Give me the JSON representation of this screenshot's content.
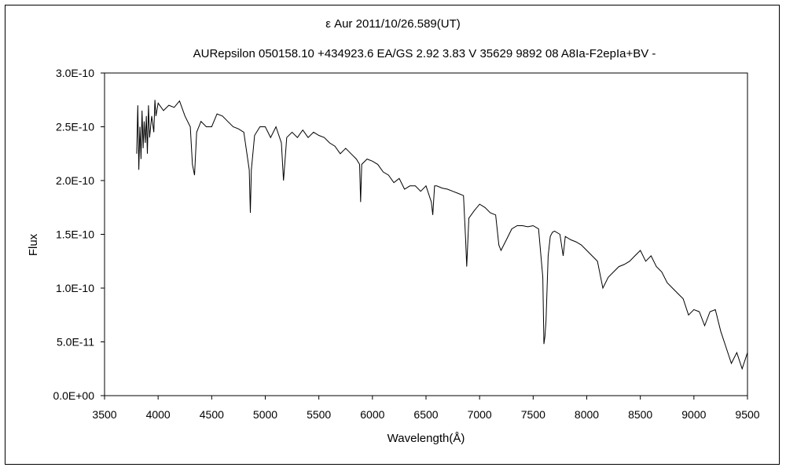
{
  "chart_data": {
    "type": "line",
    "title": "ε  Aur    2011/10/26.589(UT)",
    "subtitle": "AURepsilon 050158.10 +434923.6 EA/GS 2.92 3.83 V 35629 9892 08 A8Ia-F2epIa+BV -",
    "xlabel": "Wavelength(Å)",
    "ylabel": "Flux",
    "xlim": [
      3500,
      9500
    ],
    "ylim": [
      0,
      3e-10
    ],
    "x_ticks": [
      3500,
      4000,
      4500,
      5000,
      5500,
      6000,
      6500,
      7000,
      7500,
      8000,
      8500,
      9000,
      9500
    ],
    "x_tick_labels": [
      "3500",
      "4000",
      "4500",
      "5000",
      "5500",
      "6000",
      "6500",
      "7000",
      "7500",
      "8000",
      "8500",
      "9000",
      "9500"
    ],
    "y_ticks": [
      0,
      5e-11,
      1e-10,
      1.5e-10,
      2e-10,
      2.5e-10,
      3e-10
    ],
    "y_tick_labels": [
      "0.0E+00",
      "5.0E-11",
      "1.0E-10",
      "1.5E-10",
      "2.0E-10",
      "2.5E-10",
      "3.0E-10"
    ],
    "grid": false,
    "series": [
      {
        "x": [
          3800,
          3810,
          3820,
          3830,
          3840,
          3850,
          3860,
          3870,
          3880,
          3890,
          3900,
          3910,
          3920,
          3940,
          3960,
          3970,
          3980,
          4000,
          4050,
          4100,
          4150,
          4200,
          4250,
          4300,
          4320,
          4340,
          4360,
          4400,
          4450,
          4500,
          4550,
          4600,
          4650,
          4700,
          4750,
          4800,
          4850,
          4861,
          4870,
          4900,
          4950,
          5000,
          5050,
          5100,
          5150,
          5170,
          5200,
          5250,
          5300,
          5350,
          5400,
          5450,
          5500,
          5550,
          5600,
          5650,
          5700,
          5750,
          5800,
          5850,
          5880,
          5890,
          5900,
          5950,
          6000,
          6050,
          6100,
          6150,
          6200,
          6250,
          6300,
          6350,
          6400,
          6450,
          6500,
          6550,
          6563,
          6580,
          6600,
          6650,
          6700,
          6750,
          6800,
          6850,
          6870,
          6880,
          6900,
          6950,
          7000,
          7050,
          7100,
          7150,
          7180,
          7200,
          7250,
          7300,
          7350,
          7400,
          7450,
          7500,
          7550,
          7590,
          7600,
          7610,
          7620,
          7640,
          7660,
          7680,
          7700,
          7750,
          7780,
          7800,
          7850,
          7900,
          7950,
          8000,
          8050,
          8100,
          8150,
          8200,
          8250,
          8300,
          8350,
          8400,
          8450,
          8500,
          8550,
          8600,
          8650,
          8700,
          8750,
          8800,
          8850,
          8900,
          8950,
          9000,
          9050,
          9100,
          9150,
          9200,
          9250,
          9300,
          9350,
          9400,
          9450,
          9500
        ],
        "y": [
          2.25e-10,
          2.7e-10,
          2.1e-10,
          2.5e-10,
          2.2e-10,
          2.65e-10,
          2.3e-10,
          2.55e-10,
          2.35e-10,
          2.6e-10,
          2.25e-10,
          2.7e-10,
          2.4e-10,
          2.6e-10,
          2.45e-10,
          2.75e-10,
          2.6e-10,
          2.72e-10,
          2.65e-10,
          2.7e-10,
          2.68e-10,
          2.74e-10,
          2.6e-10,
          2.5e-10,
          2.15e-10,
          2.05e-10,
          2.45e-10,
          2.55e-10,
          2.5e-10,
          2.5e-10,
          2.62e-10,
          2.6e-10,
          2.55e-10,
          2.5e-10,
          2.48e-10,
          2.45e-10,
          2.1e-10,
          1.7e-10,
          2.1e-10,
          2.42e-10,
          2.5e-10,
          2.5e-10,
          2.4e-10,
          2.5e-10,
          2.35e-10,
          2e-10,
          2.4e-10,
          2.45e-10,
          2.4e-10,
          2.47e-10,
          2.4e-10,
          2.45e-10,
          2.42e-10,
          2.4e-10,
          2.35e-10,
          2.32e-10,
          2.25e-10,
          2.3e-10,
          2.25e-10,
          2.2e-10,
          2.15e-10,
          1.8e-10,
          2.15e-10,
          2.2e-10,
          2.18e-10,
          2.15e-10,
          2.08e-10,
          2.05e-10,
          1.98e-10,
          2.02e-10,
          1.92e-10,
          1.95e-10,
          1.95e-10,
          1.9e-10,
          1.95e-10,
          1.8e-10,
          1.68e-10,
          1.95e-10,
          1.95e-10,
          1.93e-10,
          1.92e-10,
          1.9e-10,
          1.88e-10,
          1.86e-10,
          1.45e-10,
          1.2e-10,
          1.65e-10,
          1.72e-10,
          1.78e-10,
          1.75e-10,
          1.7e-10,
          1.68e-10,
          1.4e-10,
          1.35e-10,
          1.45e-10,
          1.55e-10,
          1.58e-10,
          1.58e-10,
          1.57e-10,
          1.58e-10,
          1.55e-10,
          1.1e-10,
          4.8e-11,
          5.5e-11,
          7e-11,
          1.3e-10,
          1.48e-10,
          1.52e-10,
          1.53e-10,
          1.5e-10,
          1.3e-10,
          1.48e-10,
          1.45e-10,
          1.43e-10,
          1.4e-10,
          1.35e-10,
          1.3e-10,
          1.25e-10,
          1e-10,
          1.1e-10,
          1.15e-10,
          1.2e-10,
          1.22e-10,
          1.25e-10,
          1.3e-10,
          1.35e-10,
          1.25e-10,
          1.3e-10,
          1.2e-10,
          1.15e-10,
          1.05e-10,
          1e-10,
          9.5e-11,
          9e-11,
          7.5e-11,
          8e-11,
          7.8e-11,
          6.5e-11,
          7.8e-11,
          8e-11,
          6e-11,
          4.5e-11,
          3e-11,
          4e-11,
          2.5e-11,
          4e-11
        ]
      }
    ]
  }
}
